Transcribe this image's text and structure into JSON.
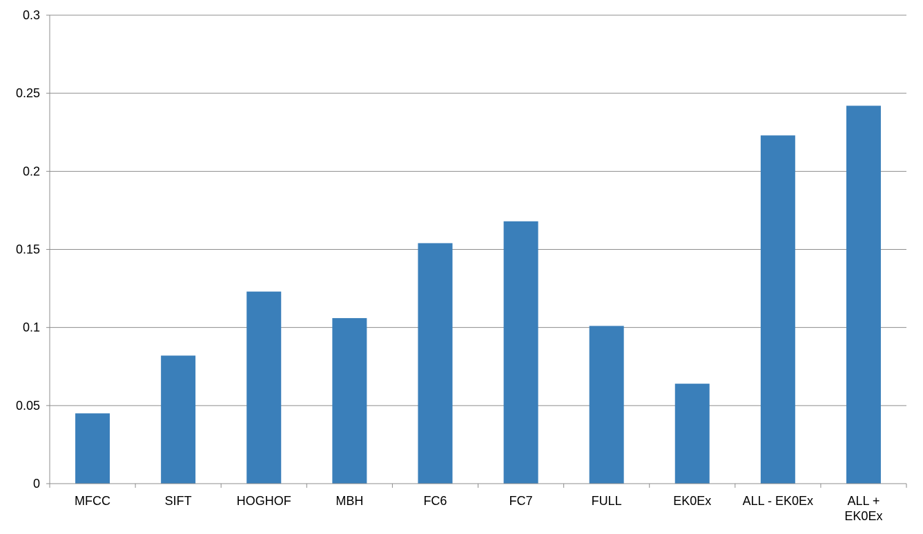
{
  "chart_data": {
    "type": "bar",
    "title": "",
    "xlabel": "",
    "ylabel": "",
    "categories": [
      "MFCC",
      "SIFT",
      "HOGHOF",
      "MBH",
      "FC6",
      "FC7",
      "FULL",
      "EK0Ex",
      "ALL - EK0Ex",
      "ALL + EK0Ex"
    ],
    "values": [
      0.045,
      0.082,
      0.123,
      0.106,
      0.154,
      0.168,
      0.101,
      0.064,
      0.223,
      0.242
    ],
    "ylim": [
      0,
      0.3
    ],
    "yticks": [
      0,
      0.05,
      0.1,
      0.15,
      0.2,
      0.25,
      0.3
    ],
    "ytick_labels": [
      "0",
      "0.05",
      "0.1",
      "0.15",
      "0.2",
      "0.25",
      "0.3"
    ],
    "grid": true,
    "legend": "none",
    "bar_color": "#3a7fba"
  }
}
